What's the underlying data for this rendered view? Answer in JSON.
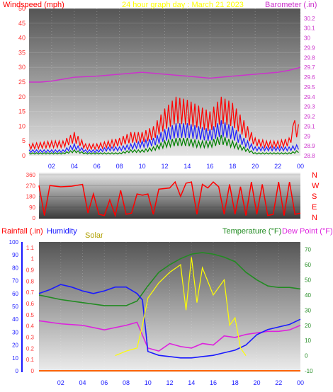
{
  "chart_data": [
    {
      "type": "line",
      "title": "24 hour graph day : March 21 2023",
      "ylabel": "Windspeed (mph)",
      "y2label": "Barometer (.in)",
      "x_ticks": [
        "02",
        "04",
        "06",
        "08",
        "10",
        "12",
        "14",
        "16",
        "18",
        "20",
        "22",
        "00"
      ],
      "xlim": [
        0,
        24
      ],
      "ylim": [
        0,
        50
      ],
      "yticks": [
        0,
        5,
        10,
        15,
        20,
        25,
        30,
        35,
        40,
        45,
        50
      ],
      "y2lim": [
        28.8,
        30.3
      ],
      "y2ticks": [
        "28.8",
        "28.9",
        "29",
        "29.1",
        "29.2",
        "29.3",
        "29.4",
        "29.5",
        "29.6",
        "29.7",
        "29.8",
        "29.9",
        "30",
        "30.1",
        "30.2"
      ],
      "series": [
        {
          "role": "gust",
          "color": "#ff0000",
          "hours": [
            0,
            2,
            3,
            4,
            5,
            6,
            7,
            8,
            9,
            10,
            11,
            12,
            13,
            14,
            15,
            16,
            17,
            18,
            19,
            20,
            21,
            22,
            23,
            23.5,
            24
          ],
          "values": [
            4,
            5,
            5,
            8,
            4,
            4,
            5,
            6,
            8,
            8,
            10,
            16,
            20,
            19,
            17,
            15,
            20,
            18,
            12,
            6,
            5,
            5,
            6,
            12,
            10
          ]
        },
        {
          "role": "average",
          "color": "#2020ff",
          "hours": [
            0,
            2,
            3,
            4,
            5,
            6,
            7,
            8,
            9,
            10,
            11,
            12,
            13,
            14,
            15,
            16,
            17,
            18,
            19,
            20,
            21,
            22,
            23,
            24
          ],
          "values": [
            2,
            2,
            2,
            4,
            2,
            2,
            3,
            3,
            4,
            5,
            6,
            9,
            11,
            11,
            10,
            9,
            12,
            10,
            6,
            3,
            3,
            3,
            3,
            4
          ]
        },
        {
          "role": "lull",
          "color": "#008000",
          "hours": [
            0,
            2,
            3,
            4,
            5,
            6,
            7,
            8,
            9,
            10,
            11,
            12,
            13,
            14,
            15,
            16,
            17,
            18,
            19,
            20,
            21,
            22,
            23,
            24
          ],
          "values": [
            1,
            1,
            1,
            2,
            1,
            1,
            1,
            1,
            2,
            2,
            3,
            5,
            6,
            6,
            5,
            5,
            7,
            5,
            3,
            1,
            1,
            1,
            1,
            2
          ]
        },
        {
          "role": "barometer",
          "color": "#cc33cc",
          "axis": "y2",
          "hours": [
            0,
            1,
            2,
            3,
            4,
            6,
            8,
            10,
            12,
            14,
            16,
            18,
            20,
            22,
            23,
            24
          ],
          "values": [
            29.55,
            29.55,
            29.56,
            29.58,
            29.6,
            29.61,
            29.63,
            29.65,
            29.63,
            29.61,
            29.59,
            29.61,
            29.63,
            29.65,
            29.67,
            29.7
          ]
        }
      ]
    },
    {
      "type": "scatter",
      "yticks": [
        "0",
        "90",
        "180",
        "270",
        "360"
      ],
      "compass": [
        "N",
        "W",
        "S",
        "E",
        "N"
      ],
      "ylim": [
        0,
        360
      ],
      "xlim": [
        0,
        24
      ],
      "color": "#ff0000",
      "hours": [
        0,
        0.5,
        1,
        2,
        3,
        4,
        4.5,
        5,
        5.5,
        6,
        6.5,
        7,
        7.5,
        8,
        8.5,
        9,
        9.5,
        10,
        10.5,
        11,
        12,
        12.5,
        13,
        13.5,
        14,
        14.5,
        15,
        15.5,
        16,
        16.5,
        17,
        17.5,
        18,
        18.5,
        19,
        19.5,
        20,
        20.5,
        21,
        21.5,
        22,
        22.5,
        23,
        23.5,
        24
      ],
      "values": [
        270,
        20,
        270,
        260,
        265,
        280,
        40,
        200,
        30,
        20,
        150,
        20,
        230,
        30,
        40,
        200,
        190,
        200,
        30,
        240,
        250,
        300,
        180,
        290,
        300,
        30,
        280,
        250,
        300,
        260,
        30,
        280,
        30,
        260,
        20,
        300,
        30,
        280,
        20,
        30,
        300,
        20,
        300,
        30,
        40
      ]
    },
    {
      "type": "line",
      "labels": {
        "rain": "Rainfall (.in)",
        "humidity": "Humidity",
        "solar": "Solar",
        "temperature": "Temperature (°F)",
        "dewpoint": "Dew Point (°F)"
      },
      "x_ticks": [
        "02",
        "04",
        "06",
        "08",
        "10",
        "12",
        "14",
        "16",
        "18",
        "20",
        "22",
        "00"
      ],
      "xlim": [
        0,
        24
      ],
      "humidity_ticks": [
        "0",
        "10",
        "20",
        "30",
        "40",
        "50",
        "60",
        "70",
        "80",
        "90",
        "100"
      ],
      "rain_ticks": [
        "0",
        "0.1",
        "0.2",
        "0.3",
        "0.4",
        "0.5",
        "0.6",
        "0.7",
        "0.8",
        "0.9",
        "1",
        "1.1"
      ],
      "temp_ticks": [
        "-10",
        "0",
        "10",
        "20",
        "30",
        "40",
        "50",
        "60",
        "70"
      ],
      "temp_lim": [
        -10,
        75
      ],
      "humidity_lim": [
        0,
        100
      ],
      "series": [
        {
          "role": "temperature",
          "color": "#228b22",
          "hours": [
            0,
            2,
            4,
            6,
            8,
            9,
            10,
            11,
            12,
            13,
            14,
            15,
            16,
            17,
            18,
            19,
            20,
            21,
            22,
            23,
            24
          ],
          "values": [
            40,
            37,
            35,
            33,
            33,
            36,
            46,
            55,
            60,
            64,
            67,
            68,
            67,
            65,
            62,
            55,
            50,
            46,
            45,
            45,
            44
          ]
        },
        {
          "role": "dewpoint",
          "color": "#dd22dd",
          "hours": [
            0,
            2,
            4,
            6,
            8,
            9,
            10,
            11,
            12,
            13,
            14,
            15,
            16,
            17,
            18,
            19,
            20,
            21,
            22,
            23,
            24
          ],
          "values": [
            23,
            21,
            20,
            17,
            20,
            22,
            5,
            3,
            8,
            6,
            5,
            8,
            7,
            13,
            12,
            14,
            15,
            16,
            16,
            17,
            20
          ]
        },
        {
          "role": "humidity",
          "color": "#1a1aff",
          "hours": [
            0,
            1,
            2,
            3,
            4,
            5,
            6,
            7,
            8,
            9,
            9.5,
            10,
            11,
            12,
            13,
            14,
            15,
            16,
            17,
            18,
            19,
            20,
            21,
            22,
            23,
            24
          ],
          "values": [
            60,
            63,
            67,
            65,
            62,
            60,
            62,
            65,
            65,
            60,
            55,
            15,
            12,
            11,
            10,
            10,
            11,
            12,
            14,
            16,
            20,
            28,
            32,
            34,
            36,
            40
          ]
        },
        {
          "role": "solar",
          "color": "#ffff00",
          "hours": [
            7,
            8,
            9,
            9.5,
            10,
            11,
            12,
            13,
            13.5,
            14,
            14.5,
            15,
            16,
            17,
            17.5,
            18,
            18.5,
            19
          ],
          "values": [
            0,
            3,
            5,
            20,
            38,
            48,
            55,
            60,
            30,
            65,
            35,
            58,
            40,
            50,
            20,
            25,
            5,
            0
          ]
        }
      ]
    }
  ]
}
